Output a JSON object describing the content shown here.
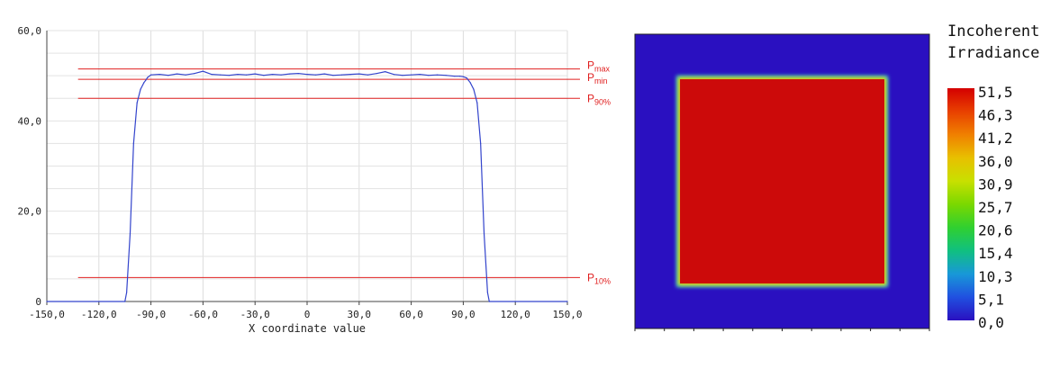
{
  "chart_data": [
    {
      "type": "line",
      "xlabel": "X coordinate value",
      "ylabel": "",
      "xlim": [
        -150,
        150
      ],
      "ylim": [
        0,
        60
      ],
      "grid": true,
      "x_ticks": [
        "-150,0",
        "-120,0",
        "-90,0",
        "-60,0",
        "-30,0",
        "0",
        "30,0",
        "60,0",
        "90,0",
        "120,0",
        "150,0"
      ],
      "y_ticks": [
        "0",
        "20,0",
        "40,0",
        "60,0"
      ],
      "series": [
        {
          "color": "#3344cc",
          "x": [
            -150,
            -105,
            -104,
            -102,
            -100,
            -98,
            -96,
            -94,
            -93,
            -92,
            -90,
            -85,
            -80,
            -75,
            -70,
            -65,
            -60,
            -55,
            -50,
            -45,
            -40,
            -35,
            -30,
            -25,
            -20,
            -15,
            -10,
            -5,
            0,
            5,
            10,
            15,
            20,
            25,
            30,
            35,
            40,
            45,
            50,
            55,
            60,
            65,
            70,
            75,
            80,
            85,
            88,
            90,
            92,
            93,
            94,
            96,
            98,
            100,
            102,
            104,
            105,
            150
          ],
          "y": [
            0,
            0,
            2,
            15,
            35,
            44,
            47,
            48.5,
            49,
            49.6,
            50.2,
            50.3,
            50.1,
            50.4,
            50.2,
            50.5,
            51.0,
            50.3,
            50.2,
            50.1,
            50.3,
            50.2,
            50.4,
            50.1,
            50.3,
            50.2,
            50.4,
            50.5,
            50.3,
            50.2,
            50.4,
            50.1,
            50.2,
            50.3,
            50.4,
            50.2,
            50.5,
            50.9,
            50.3,
            50.1,
            50.2,
            50.3,
            50.1,
            50.2,
            50.1,
            49.9,
            49.9,
            49.8,
            49.5,
            49,
            48.5,
            47,
            44,
            35,
            15,
            2,
            0,
            0
          ]
        }
      ],
      "reference_lines": [
        {
          "label": "P",
          "sub": "max",
          "value": 51.5,
          "x_range": [
            -132,
            150
          ]
        },
        {
          "label": "P",
          "sub": "min",
          "value": 49.2,
          "x_range": [
            -132,
            150
          ]
        },
        {
          "label": "P",
          "sub": "90%",
          "value": 45.0,
          "x_range": [
            -132,
            150
          ]
        },
        {
          "label": "P",
          "sub": "10%",
          "value": 5.3,
          "x_range": [
            -132,
            150
          ]
        }
      ]
    },
    {
      "type": "heatmap",
      "title": [
        "Incoherent",
        "Irradiance"
      ],
      "background_value": 0,
      "square_value": 50,
      "square_extent": [
        -105,
        105
      ],
      "field_extent": [
        -150,
        150
      ],
      "colorbar_labels": [
        "51,5",
        "46,3",
        "41,2",
        "36,0",
        "30,9",
        "25,7",
        "20,6",
        "15,4",
        "10,3",
        "5,1",
        "0,0"
      ],
      "colorbar_stops": [
        "#d40000",
        "#e84000",
        "#f08000",
        "#e8c000",
        "#c8e000",
        "#7ad800",
        "#30d030",
        "#10c080",
        "#1898d8",
        "#2050e0",
        "#2a10c0"
      ]
    }
  ]
}
